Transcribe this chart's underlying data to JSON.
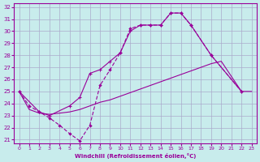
{
  "xlabel": "Windchill (Refroidissement éolien,°C)",
  "background_color": "#c8ecec",
  "line_color": "#990099",
  "grid_color": "#aaaacc",
  "xlim": [
    -0.5,
    23.5
  ],
  "ylim": [
    20.7,
    32.3
  ],
  "xticks": [
    0,
    1,
    2,
    3,
    4,
    5,
    6,
    7,
    8,
    9,
    10,
    11,
    12,
    13,
    14,
    15,
    16,
    17,
    18,
    19,
    20,
    21,
    22,
    23
  ],
  "yticks": [
    21,
    22,
    23,
    24,
    25,
    26,
    27,
    28,
    29,
    30,
    31,
    32
  ],
  "line1_x": [
    0,
    1,
    2,
    3,
    4,
    5,
    6,
    7,
    8,
    9,
    10,
    11,
    12,
    13,
    14,
    15,
    16,
    17,
    19,
    22
  ],
  "line1_y": [
    25.0,
    23.8,
    23.3,
    22.8,
    22.2,
    21.5,
    20.9,
    22.2,
    25.5,
    26.8,
    28.2,
    30.2,
    30.5,
    30.5,
    30.5,
    31.5,
    31.5,
    30.5,
    28.0,
    25.0
  ],
  "line2_x": [
    0,
    1,
    2,
    3,
    4,
    5,
    6,
    7,
    8,
    9,
    10,
    11,
    12,
    13,
    14,
    15,
    16,
    17,
    18,
    19,
    20,
    22,
    23
  ],
  "line2_y": [
    25.0,
    23.5,
    23.2,
    23.1,
    23.2,
    23.3,
    23.5,
    23.8,
    24.1,
    24.3,
    24.6,
    24.9,
    25.2,
    25.5,
    25.8,
    26.1,
    26.4,
    26.7,
    27.0,
    27.3,
    27.5,
    25.0,
    25.0
  ],
  "line3_x": [
    0,
    2,
    3,
    5,
    6,
    7,
    8,
    9,
    10,
    11,
    12,
    13,
    14,
    15,
    16,
    17,
    19,
    22
  ],
  "line3_y": [
    25.0,
    23.3,
    23.0,
    23.8,
    24.5,
    26.5,
    26.8,
    27.5,
    28.2,
    30.0,
    30.5,
    30.5,
    30.5,
    31.5,
    31.5,
    30.5,
    28.0,
    25.0
  ]
}
